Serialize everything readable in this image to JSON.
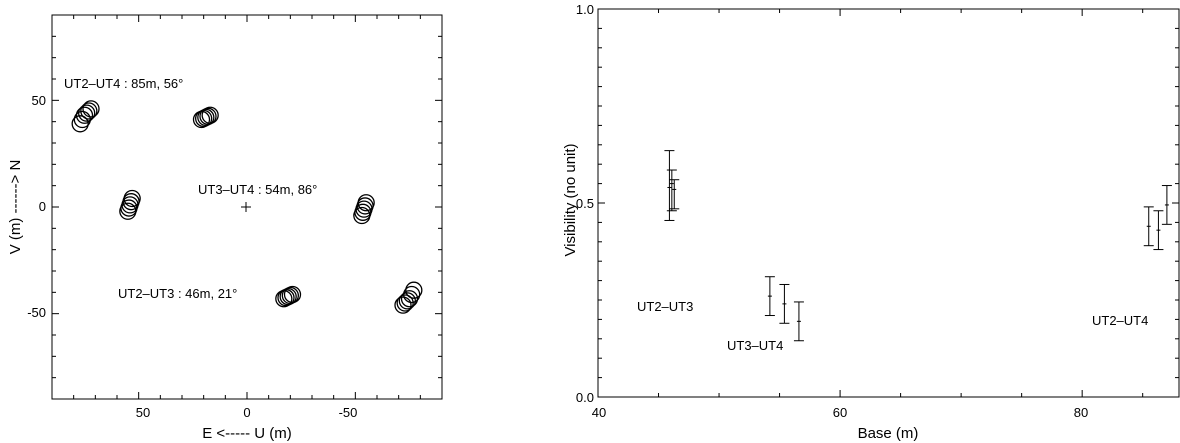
{
  "chart_data": [
    {
      "type": "scatter",
      "title": "",
      "xlabel": "E <----- U (m)",
      "ylabel": "V (m) ------> N",
      "xlim": [
        90,
        -90
      ],
      "ylim": [
        -90,
        90
      ],
      "xticks": [
        "50",
        "0",
        "-50"
      ],
      "yticks": [
        "50",
        "0",
        "-50"
      ],
      "center_marker": "+",
      "annotations": [
        {
          "text": "UT2–UT4 : 85m, 56°"
        },
        {
          "text": "UT3–UT4 : 54m, 86°"
        },
        {
          "text": "UT2–UT3 : 46m, 21°"
        }
      ],
      "clusters": [
        {
          "baseline": "UT2–UT4",
          "points": [
            [
              77,
              39
            ],
            [
              76,
              41
            ],
            [
              75,
              43
            ],
            [
              74,
              44
            ],
            [
              73,
              45
            ],
            [
              72,
              46
            ]
          ]
        },
        {
          "baseline": "UT2–UT4",
          "points": [
            [
              -77,
              -39
            ],
            [
              -76,
              -41
            ],
            [
              -75,
              -43
            ],
            [
              -74,
              -44
            ],
            [
              -73,
              -45
            ],
            [
              -72,
              -46
            ]
          ]
        },
        {
          "baseline": "UT3–UT4",
          "points": [
            [
              55,
              -2
            ],
            [
              54.5,
              -0.5
            ],
            [
              54,
              1
            ],
            [
              53.5,
              2.5
            ],
            [
              53,
              4
            ]
          ]
        },
        {
          "baseline": "UT3–UT4",
          "points": [
            [
              -55,
              2
            ],
            [
              -54.5,
              0.5
            ],
            [
              -54,
              -1
            ],
            [
              -53.5,
              -2.5
            ],
            [
              -53,
              -4
            ]
          ]
        },
        {
          "baseline": "UT2–UT3",
          "points": [
            [
              21,
              41
            ],
            [
              20,
              41.5
            ],
            [
              19,
              42
            ],
            [
              18,
              42.5
            ],
            [
              17,
              43
            ]
          ]
        },
        {
          "baseline": "UT2–UT3",
          "points": [
            [
              -21,
              -41
            ],
            [
              -20,
              -41.5
            ],
            [
              -19,
              -42
            ],
            [
              -18,
              -42.5
            ],
            [
              -17,
              -43
            ]
          ]
        }
      ]
    },
    {
      "type": "errorbar",
      "title": "",
      "xlabel": "Base (m)",
      "ylabel": "Visibility (no unit)",
      "xlim": [
        40,
        88
      ],
      "ylim": [
        0.0,
        1.0
      ],
      "xticks": [
        "40",
        "60",
        "80"
      ],
      "yticks": [
        "0.0",
        "0.5",
        "1.0"
      ],
      "series": [
        {
          "name": "UT2–UT3",
          "points": [
            {
              "x": 45.9,
              "y": 0.54,
              "low": 0.455,
              "high": 0.635
            },
            {
              "x": 46.1,
              "y": 0.55,
              "low": 0.48,
              "high": 0.585
            },
            {
              "x": 46.3,
              "y": 0.535,
              "low": 0.485,
              "high": 0.56
            }
          ]
        },
        {
          "name": "UT3–UT4",
          "points": [
            {
              "x": 54.2,
              "y": 0.26,
              "low": 0.21,
              "high": 0.31
            },
            {
              "x": 55.4,
              "y": 0.24,
              "low": 0.19,
              "high": 0.29
            },
            {
              "x": 56.6,
              "y": 0.195,
              "low": 0.145,
              "high": 0.245
            }
          ]
        },
        {
          "name": "UT2–UT4",
          "points": [
            {
              "x": 85.5,
              "y": 0.44,
              "low": 0.39,
              "high": 0.49
            },
            {
              "x": 86.3,
              "y": 0.43,
              "low": 0.38,
              "high": 0.48
            },
            {
              "x": 87.0,
              "y": 0.495,
              "low": 0.445,
              "high": 0.545
            }
          ]
        }
      ],
      "labels": [
        {
          "text": "UT2–UT3"
        },
        {
          "text": "UT3–UT4"
        },
        {
          "text": "UT2–UT4"
        }
      ]
    }
  ]
}
